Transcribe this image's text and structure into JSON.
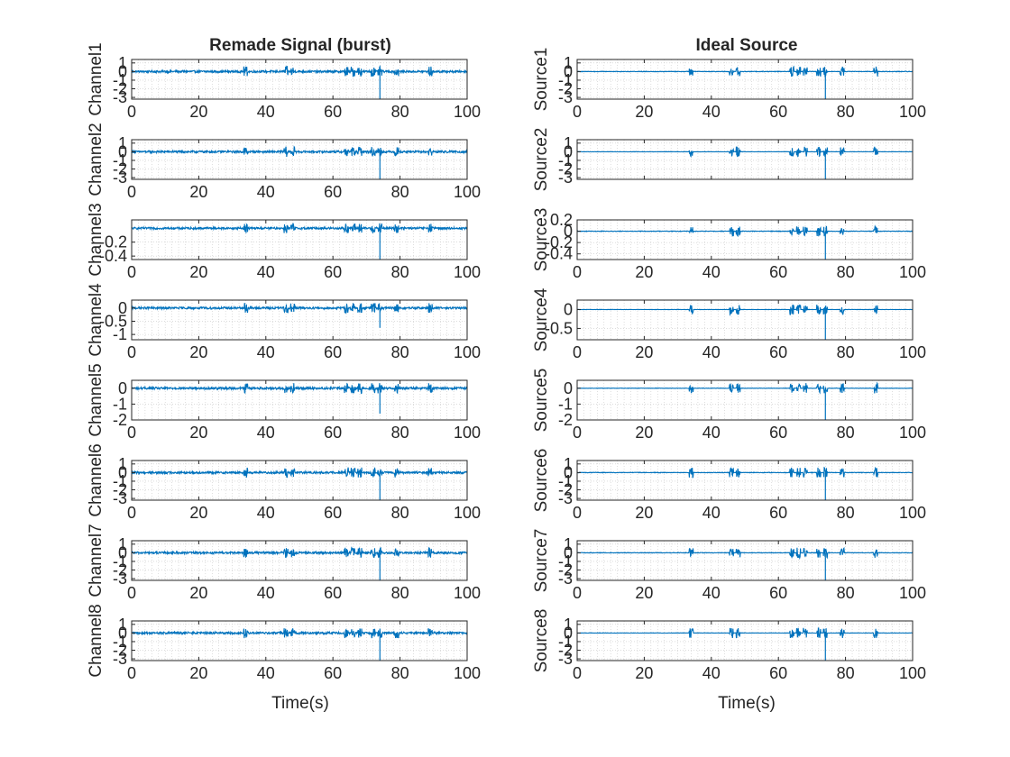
{
  "figure": {
    "left_title": "Remade Signal (burst)",
    "right_title": "Ideal Source",
    "left_xlabel": "Time(s)",
    "right_xlabel": "Time(s)"
  },
  "chart_data": {
    "type": "line",
    "xlim": [
      0,
      100
    ],
    "xticks": [
      0,
      20,
      40,
      60,
      80,
      100
    ],
    "grid": true,
    "line_color": "#0072BD",
    "burst_times_s": [
      34,
      46,
      48,
      64,
      66,
      68,
      72,
      74,
      79,
      89
    ],
    "spike_time_s": 74,
    "panels": [
      {
        "column": "left",
        "row": 1,
        "ylabel": "Channel1",
        "ylim": [
          -3.2,
          1.4
        ],
        "yticks": [
          1,
          0,
          -1,
          -2,
          -3
        ],
        "xticklabels": true,
        "noise_level": 0.12,
        "spike_min": -3.2
      },
      {
        "column": "left",
        "row": 2,
        "ylabel": "Channel2",
        "ylim": [
          -3.2,
          1.4
        ],
        "yticks": [
          1,
          0,
          -1,
          -2,
          -3
        ],
        "xticklabels": true,
        "noise_level": 0.12,
        "spike_min": -3.2
      },
      {
        "column": "left",
        "row": 3,
        "ylabel": "Channel3",
        "ylim": [
          -0.45,
          0.12
        ],
        "yticks": [
          -0.2,
          -0.4
        ],
        "xticklabels": true,
        "noise_level": 0.015,
        "spike_min": -0.45
      },
      {
        "column": "left",
        "row": 4,
        "ylabel": "Channel4",
        "ylim": [
          -1.2,
          0.3
        ],
        "yticks": [
          0,
          -0.5,
          -1
        ],
        "xticklabels": true,
        "noise_level": 0.04,
        "spike_min": -0.75
      },
      {
        "column": "left",
        "row": 5,
        "ylabel": "Channel5",
        "ylim": [
          -2,
          0.5
        ],
        "yticks": [
          0,
          -1,
          -2
        ],
        "xticklabels": true,
        "noise_level": 0.07,
        "spike_min": -1.6
      },
      {
        "column": "left",
        "row": 6,
        "ylabel": "Channel6",
        "ylim": [
          -3.2,
          1.4
        ],
        "yticks": [
          1,
          0,
          -1,
          -2,
          -3
        ],
        "xticklabels": true,
        "noise_level": 0.12,
        "spike_min": -3.2
      },
      {
        "column": "left",
        "row": 7,
        "ylabel": "Channel7",
        "ylim": [
          -3.2,
          1.4
        ],
        "yticks": [
          1,
          0,
          -1,
          -2,
          -3
        ],
        "xticklabels": true,
        "noise_level": 0.12,
        "spike_min": -3.2
      },
      {
        "column": "left",
        "row": 8,
        "ylabel": "Channel8",
        "ylim": [
          -3.2,
          1.4
        ],
        "yticks": [
          1,
          0,
          -1,
          -2,
          -3
        ],
        "xticklabels": true,
        "noise_level": 0.12,
        "spike_min": -3.2
      },
      {
        "column": "right",
        "row": 1,
        "ylabel": "Source1",
        "ylim": [
          -3.2,
          1.4
        ],
        "yticks": [
          1,
          0,
          -1,
          -2,
          -3
        ],
        "xticklabels": true,
        "noise_level": 0.03,
        "spike_min": -3.2
      },
      {
        "column": "right",
        "row": 2,
        "ylabel": "Source2",
        "ylim": [
          -3.2,
          1.4
        ],
        "yticks": [
          1,
          0,
          -1,
          -2,
          -3
        ],
        "xticklabels": false,
        "noise_level": 0.0,
        "spike_min": -3.2
      },
      {
        "column": "right",
        "row": 3,
        "ylabel": "Source3",
        "ylim": [
          -0.5,
          0.2
        ],
        "yticks": [
          0.2,
          0,
          -0.2,
          -0.4
        ],
        "xticklabels": true,
        "noise_level": 0.005,
        "spike_min": -0.5
      },
      {
        "column": "right",
        "row": 4,
        "ylabel": "Source4",
        "ylim": [
          -0.8,
          0.25
        ],
        "yticks": [
          0,
          -0.5
        ],
        "xticklabels": true,
        "noise_level": 0.0,
        "spike_min": -0.8
      },
      {
        "column": "right",
        "row": 5,
        "ylabel": "Source5",
        "ylim": [
          -2,
          0.5
        ],
        "yticks": [
          0,
          -1,
          -2
        ],
        "xticklabels": true,
        "noise_level": 0.0,
        "spike_min": -2
      },
      {
        "column": "right",
        "row": 6,
        "ylabel": "Source6",
        "ylim": [
          -3.2,
          1.4
        ],
        "yticks": [
          1,
          0,
          -1,
          -2,
          -3
        ],
        "xticklabels": true,
        "noise_level": 0.03,
        "spike_min": -3.2
      },
      {
        "column": "right",
        "row": 7,
        "ylabel": "Source7",
        "ylim": [
          -3.2,
          1.4
        ],
        "yticks": [
          1,
          0,
          -1,
          -2,
          -3
        ],
        "xticklabels": true,
        "noise_level": 0.03,
        "spike_min": -3.2
      },
      {
        "column": "right",
        "row": 8,
        "ylabel": "Source8",
        "ylim": [
          -3.2,
          1.4
        ],
        "yticks": [
          1,
          0,
          -1,
          -2,
          -3
        ],
        "xticklabels": true,
        "noise_level": 0.0,
        "spike_min": -3.2
      }
    ]
  }
}
